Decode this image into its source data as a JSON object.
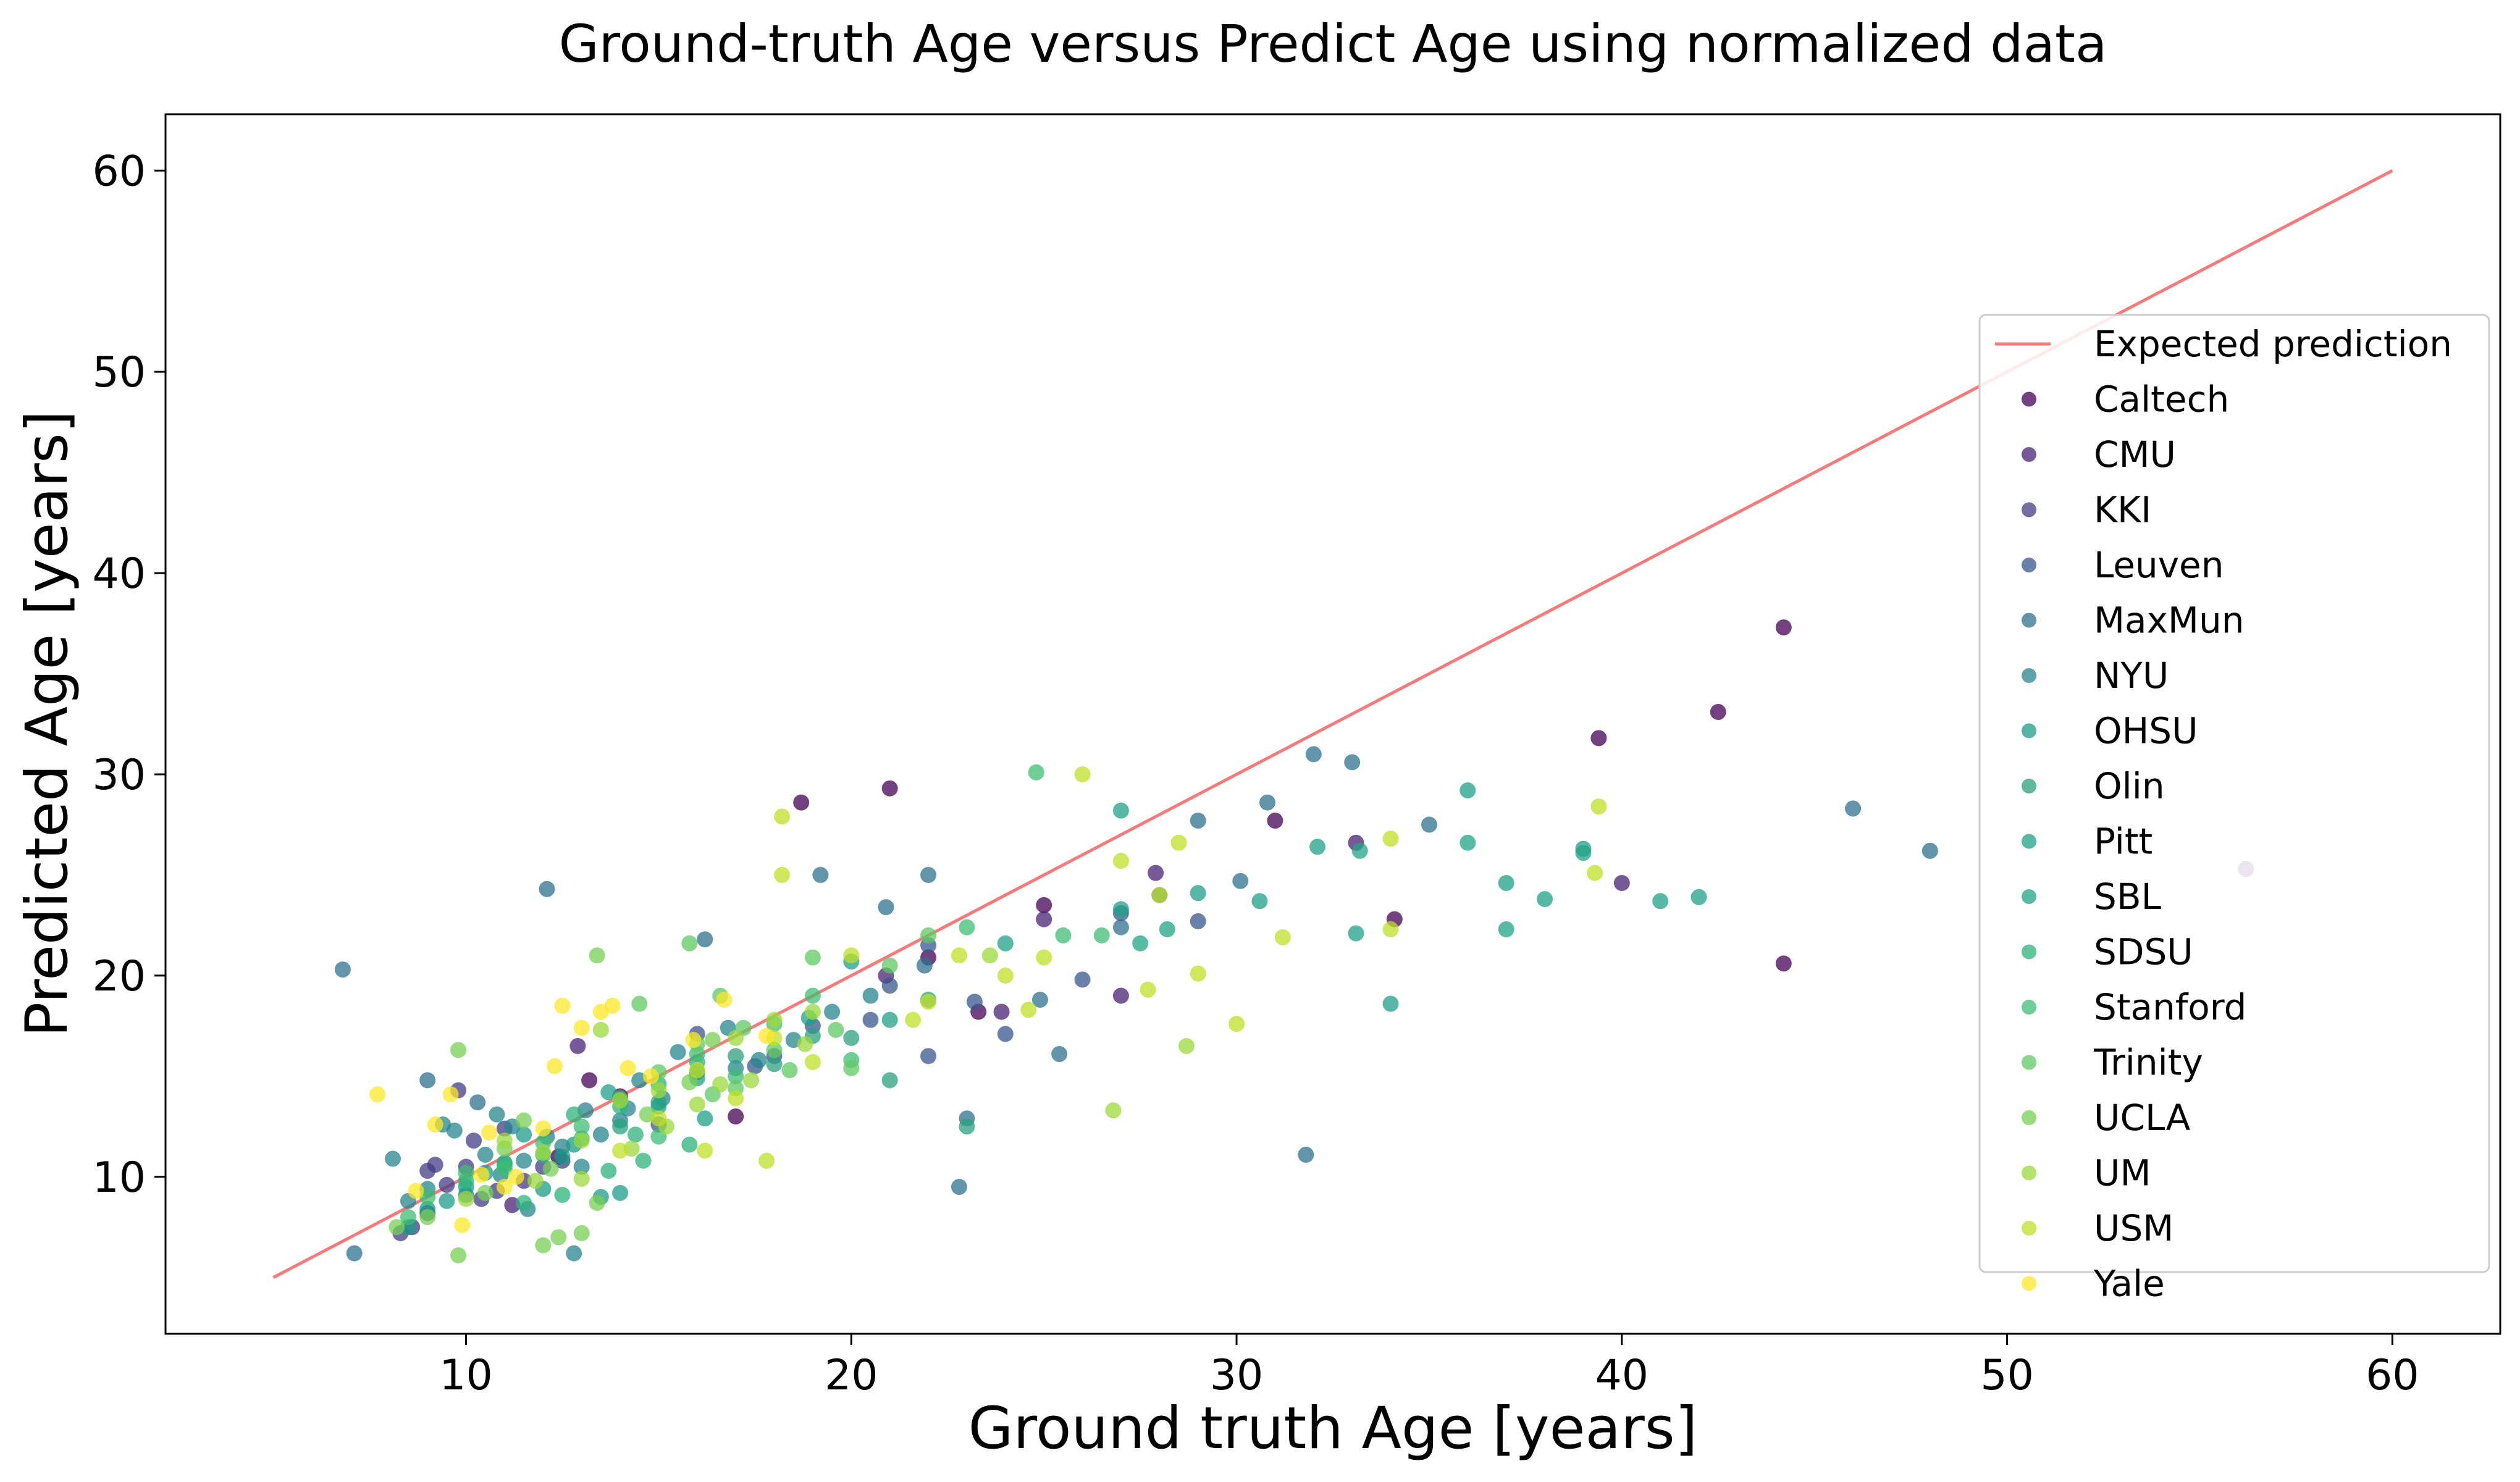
{
  "chart_data": {
    "type": "scatter",
    "title": "Ground-truth Age versus Predict Age using normalized data",
    "xlabel": "Ground truth Age [years]",
    "ylabel": "Predicted Age [years]",
    "xlim": [
      2.2,
      62.8
    ],
    "ylim": [
      2.2,
      62.8
    ],
    "xticks": [
      10,
      20,
      30,
      40,
      50,
      60
    ],
    "yticks": [
      10,
      20,
      30,
      40,
      50,
      60
    ],
    "grid": false,
    "legend_position": "right",
    "reference_line": {
      "name": "Expected prediction",
      "color": "#f77a7a",
      "points": [
        [
          5,
          5
        ],
        [
          60,
          60
        ]
      ]
    },
    "series": [
      {
        "name": "Caltech",
        "color": "#440154",
        "points": [
          [
            18.7,
            28.6
          ],
          [
            21.0,
            29.3
          ],
          [
            44.2,
            37.3
          ],
          [
            42.5,
            33.1
          ],
          [
            39.4,
            31.8
          ],
          [
            31.0,
            27.7
          ],
          [
            34.1,
            22.8
          ],
          [
            44.2,
            20.6
          ],
          [
            23.3,
            18.2
          ],
          [
            22.0,
            20.9
          ],
          [
            17.0,
            13.0
          ],
          [
            14.0,
            14.0
          ],
          [
            13.2,
            14.8
          ],
          [
            25.0,
            23.5
          ],
          [
            12.4,
            11.0
          ]
        ]
      },
      {
        "name": "CMU",
        "color": "#482173",
        "points": [
          [
            20.9,
            20.0
          ],
          [
            23.9,
            18.2
          ],
          [
            27.9,
            25.1
          ],
          [
            33.1,
            26.6
          ],
          [
            27.0,
            19.0
          ],
          [
            40.0,
            24.6
          ],
          [
            56.2,
            25.3
          ],
          [
            11.2,
            8.6
          ],
          [
            12.9,
            16.5
          ],
          [
            25.0,
            22.8
          ]
        ]
      },
      {
        "name": "KKI",
        "color": "#433e85",
        "points": [
          [
            9.0,
            8.2
          ],
          [
            9.5,
            9.6
          ],
          [
            10.0,
            10.5
          ],
          [
            10.4,
            8.9
          ],
          [
            9.8,
            14.3
          ],
          [
            11.0,
            12.4
          ],
          [
            12.0,
            10.5
          ],
          [
            8.6,
            7.5
          ],
          [
            9.2,
            10.6
          ],
          [
            10.8,
            9.3
          ],
          [
            12.5,
            10.8
          ],
          [
            11.5,
            9.8
          ],
          [
            9.0,
            10.3
          ],
          [
            8.3,
            7.2
          ],
          [
            10.2,
            11.8
          ]
        ]
      },
      {
        "name": "Leuven",
        "color": "#38588c",
        "points": [
          [
            18.0,
            16.0
          ],
          [
            20.5,
            17.8
          ],
          [
            22.0,
            21.5
          ],
          [
            23.2,
            18.7
          ],
          [
            24.0,
            17.1
          ],
          [
            26.0,
            19.8
          ],
          [
            28.0,
            24.0
          ],
          [
            29.0,
            22.7
          ],
          [
            22.0,
            16.0
          ],
          [
            19.0,
            17.5
          ],
          [
            21.0,
            19.5
          ],
          [
            27.0,
            23.1
          ],
          [
            16.0,
            17.1
          ],
          [
            15.0,
            12.6
          ],
          [
            17.5,
            15.5
          ]
        ]
      },
      {
        "name": "MaxMun",
        "color": "#2d708e",
        "points": [
          [
            6.8,
            20.3
          ],
          [
            10.3,
            13.7
          ],
          [
            12.1,
            24.3
          ],
          [
            19.2,
            25.0
          ],
          [
            22.0,
            25.0
          ],
          [
            29.0,
            27.7
          ],
          [
            30.8,
            28.6
          ],
          [
            32.0,
            31.0
          ],
          [
            33.0,
            30.6
          ],
          [
            35.0,
            27.5
          ],
          [
            46.0,
            28.3
          ],
          [
            48.0,
            26.2
          ],
          [
            23.0,
            12.9
          ],
          [
            22.8,
            9.5
          ],
          [
            7.1,
            6.2
          ],
          [
            31.8,
            11.1
          ],
          [
            25.4,
            16.1
          ],
          [
            30.1,
            24.7
          ],
          [
            27.0,
            22.4
          ],
          [
            24.9,
            18.8
          ],
          [
            20.9,
            23.4
          ],
          [
            21.9,
            20.5
          ],
          [
            16.2,
            21.8
          ],
          [
            9.0,
            14.8
          ]
        ]
      },
      {
        "name": "NYU",
        "color": "#25858e",
        "points": [
          [
            8.1,
            10.9
          ],
          [
            9.4,
            12.6
          ],
          [
            10.0,
            9.1
          ],
          [
            10.8,
            13.1
          ],
          [
            12.1,
            12.0
          ],
          [
            13.1,
            13.3
          ],
          [
            14.0,
            12.8
          ],
          [
            15.1,
            13.9
          ],
          [
            16.0,
            15.2
          ],
          [
            17.0,
            15.4
          ],
          [
            18.5,
            16.8
          ],
          [
            19.5,
            18.2
          ],
          [
            20.5,
            19.0
          ],
          [
            8.5,
            8.8
          ],
          [
            9.0,
            9.4
          ],
          [
            11.5,
            10.8
          ],
          [
            12.5,
            11.5
          ],
          [
            13.5,
            12.1
          ],
          [
            14.5,
            14.8
          ],
          [
            15.5,
            16.2
          ],
          [
            16.8,
            17.4
          ],
          [
            17.6,
            15.8
          ],
          [
            10.5,
            11.1
          ],
          [
            11.2,
            12.5
          ],
          [
            13.0,
            10.5
          ],
          [
            14.2,
            13.4
          ],
          [
            12.8,
            6.2
          ],
          [
            11.6,
            8.4
          ],
          [
            9.7,
            12.3
          ],
          [
            10.9,
            10.1
          ]
        ]
      },
      {
        "name": "OHSU",
        "color": "#1e9b8a",
        "points": [
          [
            9.0,
            8.4
          ],
          [
            10.0,
            9.5
          ],
          [
            11.0,
            10.7
          ],
          [
            12.0,
            9.4
          ],
          [
            8.5,
            7.5
          ],
          [
            9.5,
            8.8
          ],
          [
            10.5,
            10.2
          ],
          [
            11.5,
            12.1
          ],
          [
            12.5,
            11.0
          ],
          [
            13.5,
            9.0
          ],
          [
            14.0,
            9.2
          ],
          [
            12.8,
            11.6
          ]
        ]
      },
      {
        "name": "Olin",
        "color": "#2ba07e",
        "points": [
          [
            14.0,
            12.5
          ],
          [
            15.0,
            13.7
          ],
          [
            16.0,
            14.9
          ],
          [
            17.0,
            16.0
          ],
          [
            18.0,
            15.6
          ],
          [
            19.0,
            17.0
          ],
          [
            20.0,
            16.9
          ],
          [
            21.0,
            14.8
          ],
          [
            22.0,
            18.8
          ],
          [
            23.0,
            12.5
          ]
        ]
      },
      {
        "name": "Pitt",
        "color": "#1fa187",
        "points": [
          [
            15.0,
            13.5
          ],
          [
            20.0,
            20.7
          ],
          [
            21.0,
            17.8
          ],
          [
            24.0,
            21.6
          ],
          [
            27.0,
            28.2
          ],
          [
            27.0,
            23.3
          ],
          [
            29.0,
            24.1
          ],
          [
            30.6,
            23.7
          ],
          [
            32.1,
            26.4
          ],
          [
            33.1,
            22.1
          ],
          [
            34.0,
            18.6
          ],
          [
            36.0,
            29.2
          ],
          [
            37.0,
            24.6
          ],
          [
            38.0,
            23.8
          ],
          [
            39.0,
            26.3
          ],
          [
            41.0,
            23.7
          ],
          [
            42.0,
            23.9
          ],
          [
            13.7,
            14.2
          ],
          [
            16.2,
            12.9
          ],
          [
            18.9,
            17.9
          ]
        ]
      },
      {
        "name": "SBL",
        "color": "#20a486",
        "points": [
          [
            27.5,
            21.6
          ],
          [
            33.2,
            26.2
          ],
          [
            36.0,
            26.6
          ],
          [
            37.0,
            22.3
          ],
          [
            39.0,
            26.1
          ],
          [
            28.2,
            22.3
          ]
        ]
      },
      {
        "name": "SDSU",
        "color": "#2eb37c",
        "points": [
          [
            10.0,
            9.8
          ],
          [
            11.0,
            10.6
          ],
          [
            12.0,
            11.1
          ],
          [
            13.0,
            11.9
          ],
          [
            14.0,
            13.5
          ],
          [
            15.0,
            14.6
          ],
          [
            16.0,
            15.7
          ],
          [
            11.5,
            8.7
          ],
          [
            12.5,
            9.1
          ],
          [
            13.7,
            10.3
          ],
          [
            14.6,
            10.8
          ],
          [
            15.8,
            11.6
          ],
          [
            12.8,
            13.1
          ],
          [
            14.4,
            12.1
          ]
        ]
      },
      {
        "name": "Stanford",
        "color": "#3fbc73",
        "points": [
          [
            8.5,
            8.0
          ],
          [
            9.0,
            9.0
          ],
          [
            10.0,
            10.2
          ],
          [
            11.0,
            10.4
          ],
          [
            12.0,
            11.7
          ],
          [
            13.0,
            12.5
          ],
          [
            14.0,
            13.9
          ],
          [
            15.0,
            12.0
          ],
          [
            16.0,
            16.1
          ],
          [
            17.0,
            15.0
          ],
          [
            18.0,
            17.6
          ],
          [
            19.0,
            19.0
          ],
          [
            20.0,
            15.8
          ],
          [
            24.8,
            30.1
          ],
          [
            26.5,
            22.0
          ],
          [
            23.0,
            22.4
          ],
          [
            25.5,
            22.0
          ]
        ]
      },
      {
        "name": "Trinity",
        "color": "#5ec962",
        "points": [
          [
            15.0,
            15.2
          ],
          [
            16.0,
            16.6
          ],
          [
            17.0,
            14.4
          ],
          [
            18.0,
            16.3
          ],
          [
            19.0,
            20.9
          ],
          [
            20.0,
            15.4
          ],
          [
            21.0,
            20.5
          ],
          [
            22.0,
            22.0
          ],
          [
            15.8,
            21.6
          ],
          [
            17.2,
            17.4
          ],
          [
            18.4,
            15.3
          ],
          [
            19.6,
            17.3
          ],
          [
            16.4,
            14.1
          ],
          [
            14.5,
            18.6
          ],
          [
            16.6,
            19.0
          ]
        ]
      },
      {
        "name": "UCLA",
        "color": "#75d054",
        "points": [
          [
            8.2,
            7.5
          ],
          [
            9.0,
            8.0
          ],
          [
            9.8,
            16.3
          ],
          [
            10.5,
            9.2
          ],
          [
            11.5,
            12.8
          ],
          [
            12.0,
            6.6
          ],
          [
            12.4,
            7.0
          ],
          [
            13.4,
            8.7
          ],
          [
            13.0,
            7.2
          ],
          [
            13.4,
            21.0
          ],
          [
            14.7,
            13.1
          ],
          [
            15.8,
            14.7
          ],
          [
            16.4,
            16.8
          ],
          [
            9.8,
            6.1
          ],
          [
            11.0,
            11.4
          ],
          [
            12.2,
            10.4
          ]
        ]
      },
      {
        "name": "UM",
        "color": "#9bd93c",
        "points": [
          [
            10.0,
            8.9
          ],
          [
            11.0,
            11.8
          ],
          [
            12.0,
            11.2
          ],
          [
            13.0,
            11.8
          ],
          [
            14.0,
            13.8
          ],
          [
            15.0,
            14.3
          ],
          [
            16.0,
            13.6
          ],
          [
            17.0,
            16.9
          ],
          [
            18.0,
            17.8
          ],
          [
            19.0,
            18.2
          ],
          [
            13.0,
            9.9
          ],
          [
            14.3,
            11.4
          ],
          [
            15.2,
            12.5
          ],
          [
            16.6,
            14.6
          ],
          [
            17.4,
            14.8
          ],
          [
            18.8,
            16.6
          ],
          [
            13.5,
            17.3
          ],
          [
            11.8,
            9.8
          ],
          [
            26.8,
            13.3
          ],
          [
            28.7,
            16.5
          ],
          [
            23.6,
            21.0
          ]
        ]
      },
      {
        "name": "USM",
        "color": "#bfdf25",
        "points": [
          [
            14.0,
            11.3
          ],
          [
            15.0,
            12.9
          ],
          [
            16.0,
            15.3
          ],
          [
            17.0,
            13.9
          ],
          [
            18.0,
            16.9
          ],
          [
            19.0,
            15.7
          ],
          [
            20.0,
            21.0
          ],
          [
            22.0,
            18.7
          ],
          [
            24.0,
            20.0
          ],
          [
            25.0,
            20.9
          ],
          [
            26.0,
            30.0
          ],
          [
            27.0,
            25.7
          ],
          [
            28.0,
            24.0
          ],
          [
            28.5,
            26.6
          ],
          [
            29.0,
            20.1
          ],
          [
            30.0,
            17.6
          ],
          [
            31.2,
            21.9
          ],
          [
            34.0,
            26.8
          ],
          [
            34.0,
            22.3
          ],
          [
            39.3,
            25.1
          ],
          [
            39.4,
            28.4
          ],
          [
            18.2,
            27.9
          ],
          [
            18.2,
            25.0
          ],
          [
            17.8,
            10.8
          ],
          [
            16.2,
            11.3
          ],
          [
            21.6,
            17.8
          ],
          [
            22.8,
            21.0
          ],
          [
            27.7,
            19.3
          ],
          [
            24.6,
            18.3
          ]
        ]
      },
      {
        "name": "Yale",
        "color": "#fde725",
        "points": [
          [
            7.7,
            14.1
          ],
          [
            9.2,
            12.6
          ],
          [
            9.9,
            7.6
          ],
          [
            11.0,
            9.5
          ],
          [
            12.0,
            12.4
          ],
          [
            12.5,
            18.5
          ],
          [
            13.0,
            17.4
          ],
          [
            13.5,
            18.2
          ],
          [
            13.8,
            18.5
          ],
          [
            14.2,
            15.4
          ],
          [
            8.7,
            9.3
          ],
          [
            10.4,
            10.1
          ],
          [
            11.3,
            10.0
          ],
          [
            12.3,
            15.5
          ],
          [
            14.8,
            15.0
          ],
          [
            15.9,
            16.8
          ],
          [
            16.7,
            18.8
          ],
          [
            17.8,
            17.0
          ],
          [
            10.6,
            12.2
          ],
          [
            9.6,
            14.1
          ]
        ]
      }
    ]
  }
}
